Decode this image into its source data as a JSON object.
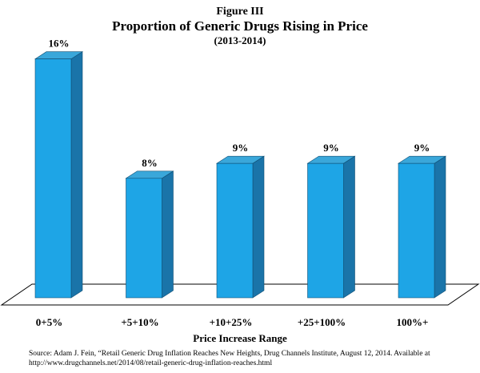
{
  "figure_label": "Figure III",
  "chart_data": {
    "type": "bar",
    "title": "Proportion of Generic Drugs Rising in Price",
    "subtitle": "(2013-2014)",
    "xlabel": "Price Increase Range",
    "ylabel": "",
    "categories": [
      "0+5%",
      "+5+10%",
      "+10+25%",
      "+25+100%",
      "100%+"
    ],
    "values": [
      16,
      8,
      9,
      9,
      9
    ],
    "data_labels": [
      "16%",
      "8%",
      "9%",
      "9%",
      "9%"
    ],
    "ylim": [
      0,
      17
    ],
    "grid": false,
    "bar_color": "#1ea5e6",
    "bar_side_color": "#1a74a9",
    "bar_top_color": "#3aa7da",
    "floor_color": "#ffffff"
  },
  "source_text": "Source: Adam J. Fein, “Retail Generic Drug Inflation Reaches New Heights, Drug Channels Institute, August 12, 2014. Available at http://www.drugchannels.net/2014/08/retail-generic-drug-inflation-reaches.html"
}
